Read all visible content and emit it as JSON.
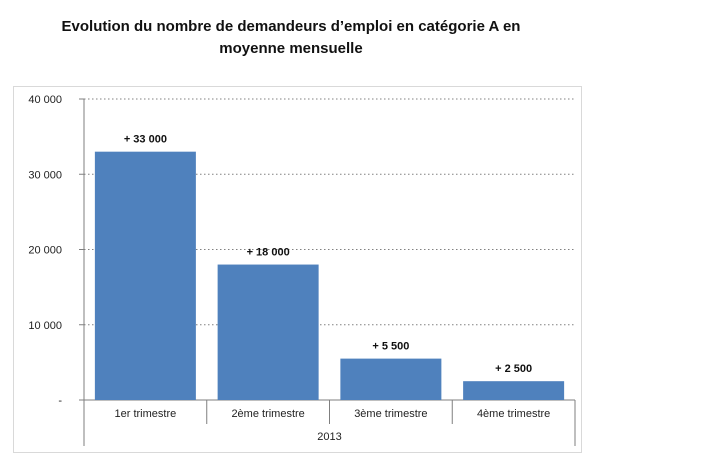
{
  "title_line1": "Evolution du nombre de demandeurs d’emploi en catégorie A en",
  "title_line2": "moyenne mensuelle",
  "colors": {
    "bar": "#4f81bd",
    "grid": "#808080",
    "axis": "#7f7f7f"
  },
  "chart_data": {
    "type": "bar",
    "title": "Evolution du nombre de demandeurs d’emploi en catégorie A en moyenne mensuelle",
    "categories": [
      "1er trimestre",
      "2ème trimestre",
      "3ème trimestre",
      "4ème trimestre"
    ],
    "group_label": "2013",
    "values": [
      33000,
      18000,
      5500,
      2500
    ],
    "data_labels": [
      "+ 33 000",
      "+ 18 000",
      "+ 5 500",
      "+ 2 500"
    ],
    "yticks": [
      0,
      10000,
      20000,
      30000,
      40000
    ],
    "ytick_labels": [
      "-",
      "10 000",
      "20 000",
      "30 000",
      "40 000"
    ],
    "ylim": [
      0,
      40000
    ],
    "grid": true,
    "xlabel": "",
    "ylabel": ""
  }
}
